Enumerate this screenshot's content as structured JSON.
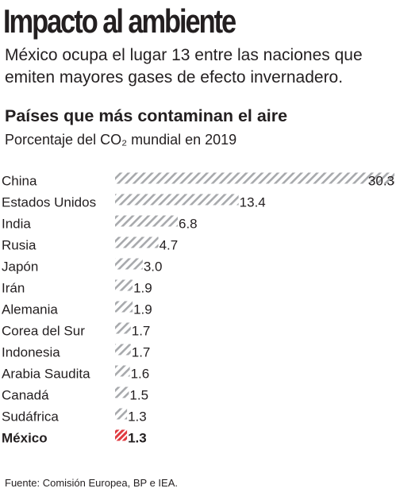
{
  "header": {
    "title": "Impacto al ambiente",
    "dek": "México ocupa el lugar 13 entre las naciones que emiten mayores gases de efecto invernadero."
  },
  "chart_data": {
    "type": "bar",
    "orientation": "horizontal",
    "title": "Países que más contaminan el aire",
    "subtitle": "Porcentaje del CO₂ mundial en 2019",
    "categories": [
      "China",
      "Estados Unidos",
      "India",
      "Rusia",
      "Japón",
      "Irán",
      "Alemania",
      "Corea del Sur",
      "Indonesia",
      "Arabia Saudita",
      "Canadá",
      "Sudáfrica",
      "México"
    ],
    "values": [
      30.3,
      13.4,
      6.8,
      4.7,
      3.0,
      1.9,
      1.9,
      1.7,
      1.7,
      1.6,
      1.5,
      1.3,
      1.3
    ],
    "value_labels": [
      "30.3",
      "13.4",
      "6.8",
      "4.7",
      "3.0",
      "1.9",
      "1.9",
      "1.7",
      "1.7",
      "1.6",
      "1.5",
      "1.3",
      "1.3"
    ],
    "highlight_category": "México",
    "bar_pattern": "diagonal-hatch",
    "colors": {
      "bar": "#a7a9ac",
      "highlight": "#e03a40",
      "text": "#231f20"
    },
    "xlim": [
      0,
      30.3
    ],
    "grid": false,
    "legend": false
  },
  "footer": {
    "source": "Fuente: Comisión Europea, BP e IEA."
  }
}
